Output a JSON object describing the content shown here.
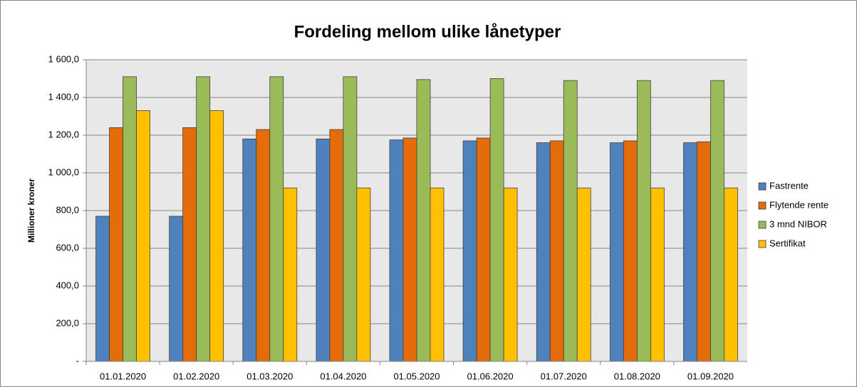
{
  "chart_data": {
    "type": "bar",
    "title": "Fordeling mellom ulike lånetyper",
    "y_label": "Millioner kroner",
    "categories": [
      "01.01.2020",
      "01.02.2020",
      "01.03.2020",
      "01.04.2020",
      "01.05.2020",
      "01.06.2020",
      "01.07.2020",
      "01.08.2020",
      "01.09.2020"
    ],
    "series": [
      {
        "name": "Fastrente",
        "color": "#4f81bd",
        "values": [
          770,
          770,
          1180,
          1180,
          1175,
          1170,
          1160,
          1160,
          1160
        ]
      },
      {
        "name": "Flytende rente",
        "color": "#e46c0a",
        "values": [
          1240,
          1240,
          1230,
          1230,
          1185,
          1185,
          1170,
          1170,
          1165
        ]
      },
      {
        "name": "3 mnd NIBOR",
        "color": "#9bbb59",
        "values": [
          1510,
          1510,
          1510,
          1510,
          1495,
          1500,
          1490,
          1490,
          1490
        ]
      },
      {
        "name": "Sertifikat",
        "color": "#ffc000",
        "values": [
          1330,
          1330,
          920,
          920,
          920,
          920,
          920,
          920,
          920
        ]
      }
    ],
    "ylim": [
      0,
      1600
    ],
    "yticks": [
      {
        "value": 0,
        "label": "-"
      },
      {
        "value": 200,
        "label": "200,0"
      },
      {
        "value": 400,
        "label": "400,0"
      },
      {
        "value": 600,
        "label": "600,0"
      },
      {
        "value": 800,
        "label": "800,0"
      },
      {
        "value": 1000,
        "label": "1 000,0"
      },
      {
        "value": 1200,
        "label": "1 200,0"
      },
      {
        "value": 1400,
        "label": "1 400,0"
      },
      {
        "value": 1600,
        "label": "1 600,0"
      }
    ],
    "grid": true,
    "legend": "right"
  }
}
